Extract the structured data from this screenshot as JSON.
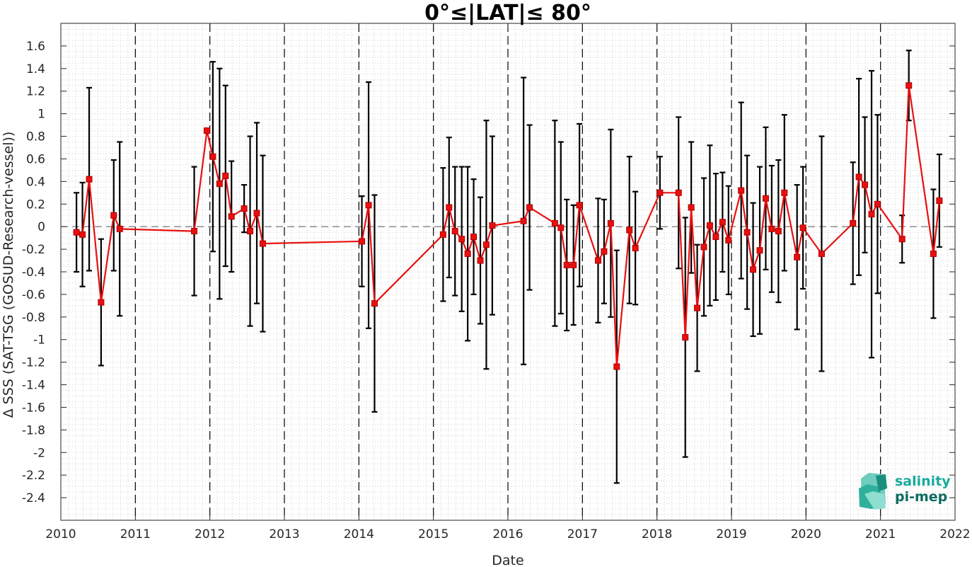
{
  "chart_data": {
    "type": "line",
    "title": "0°≤|LAT|≤ 80°",
    "xlabel": "Date",
    "ylabel": "Δ SSS (SAT-TSG (GOSUD-Research-vessel))",
    "xlim": [
      2010,
      2022
    ],
    "ylim": [
      -2.6,
      1.8
    ],
    "x_ticks": [
      "2010",
      "2011",
      "2012",
      "2013",
      "2014",
      "2015",
      "2016",
      "2017",
      "2018",
      "2019",
      "2020",
      "2021",
      "2022"
    ],
    "y_ticks": [
      "-2.4",
      "-2.2",
      "-2",
      "-1.8",
      "-1.6",
      "-1.4",
      "-1.2",
      "-1",
      "-0.8",
      "-0.6",
      "-0.4",
      "-0.2",
      "0",
      "0.2",
      "0.4",
      "0.6",
      "0.8",
      "1",
      "1.2",
      "1.4",
      "1.6"
    ],
    "grid": "minor dotted",
    "year_dividers": [
      2011,
      2012,
      2013,
      2014,
      2015,
      2016,
      2017,
      2018,
      2019,
      2020,
      2021
    ],
    "reference_line": 0,
    "colors": {
      "series": "#e8100f",
      "errorbar": "#000000",
      "divider": "#000000",
      "grid": "#bdbdbd"
    },
    "series": [
      {
        "points": [
          [
            2010.21,
            -0.05,
            0.35
          ],
          [
            2010.29,
            -0.07,
            0.46
          ],
          [
            2010.38,
            0.42,
            0.81
          ],
          [
            2010.54,
            -0.67,
            0.56
          ],
          [
            2010.71,
            0.1,
            0.49
          ],
          [
            2010.79,
            -0.02,
            0.77
          ],
          [
            2011.79,
            -0.04,
            0.57
          ],
          [
            2011.96,
            0.85,
            0.02
          ],
          [
            2012.04,
            0.62,
            0.84
          ],
          [
            2012.13,
            0.38,
            1.02
          ],
          [
            2012.21,
            0.45,
            0.8
          ],
          [
            2012.29,
            0.09,
            0.49
          ],
          [
            2012.46,
            0.16,
            0.21
          ],
          [
            2012.54,
            -0.04,
            0.84
          ],
          [
            2012.63,
            0.12,
            0.8
          ],
          [
            2012.71,
            -0.15,
            0.78
          ],
          [
            2014.04,
            -0.13,
            0.4
          ],
          [
            2014.13,
            0.19,
            1.09
          ],
          [
            2014.21,
            -0.68,
            0.96
          ],
          [
            2015.13,
            -0.07,
            0.59
          ],
          [
            2015.21,
            0.17,
            0.62
          ],
          [
            2015.29,
            -0.04,
            0.57
          ],
          [
            2015.38,
            -0.11,
            0.64
          ],
          [
            2015.46,
            -0.24,
            0.77
          ],
          [
            2015.54,
            -0.09,
            0.51
          ],
          [
            2015.63,
            -0.3,
            0.56
          ],
          [
            2015.71,
            -0.16,
            1.1
          ],
          [
            2015.79,
            0.01,
            0.79
          ],
          [
            2016.21,
            0.05,
            1.27
          ],
          [
            2016.29,
            0.17,
            0.73
          ],
          [
            2016.63,
            0.03,
            0.91
          ],
          [
            2016.71,
            -0.01,
            0.76
          ],
          [
            2016.79,
            -0.34,
            0.58
          ],
          [
            2016.88,
            -0.34,
            0.53
          ],
          [
            2016.96,
            0.19,
            0.72
          ],
          [
            2017.21,
            -0.3,
            0.55
          ],
          [
            2017.29,
            -0.22,
            0.46
          ],
          [
            2017.38,
            0.03,
            0.83
          ],
          [
            2017.46,
            -1.24,
            1.03
          ],
          [
            2017.63,
            -0.03,
            0.65
          ],
          [
            2017.71,
            -0.19,
            0.5
          ],
          [
            2018.04,
            0.3,
            0.32
          ],
          [
            2018.29,
            0.3,
            0.67
          ],
          [
            2018.38,
            -0.98,
            1.06
          ],
          [
            2018.46,
            0.17,
            0.58
          ],
          [
            2018.54,
            -0.72,
            0.56
          ],
          [
            2018.63,
            -0.18,
            0.61
          ],
          [
            2018.71,
            0.01,
            0.71
          ],
          [
            2018.79,
            -0.09,
            0.56
          ],
          [
            2018.88,
            0.04,
            0.44
          ],
          [
            2018.96,
            -0.12,
            0.48
          ],
          [
            2019.13,
            0.32,
            0.78
          ],
          [
            2019.21,
            -0.05,
            0.68
          ],
          [
            2019.29,
            -0.38,
            0.59
          ],
          [
            2019.38,
            -0.21,
            0.74
          ],
          [
            2019.46,
            0.25,
            0.63
          ],
          [
            2019.54,
            -0.02,
            0.56
          ],
          [
            2019.63,
            -0.04,
            0.63
          ],
          [
            2019.71,
            0.3,
            0.69
          ],
          [
            2019.88,
            -0.27,
            0.64
          ],
          [
            2019.96,
            -0.01,
            0.54
          ],
          [
            2020.21,
            -0.24,
            1.04
          ],
          [
            2020.63,
            0.03,
            0.54
          ],
          [
            2020.71,
            0.44,
            0.87
          ],
          [
            2020.79,
            0.37,
            0.6
          ],
          [
            2020.88,
            0.11,
            1.27
          ],
          [
            2020.96,
            0.2,
            0.79
          ],
          [
            2021.29,
            -0.11,
            0.21
          ],
          [
            2021.38,
            1.25,
            0.31
          ],
          [
            2021.71,
            -0.24,
            0.57
          ],
          [
            2021.79,
            0.23,
            0.41
          ]
        ],
        "point_format": "[decimal year, delta SSS, error bar half-width]"
      }
    ]
  },
  "logo": {
    "line1": "salinity",
    "line2": "pi-mep",
    "colors": {
      "line1": "#1aaa9b",
      "line2": "#0d6b62"
    }
  }
}
